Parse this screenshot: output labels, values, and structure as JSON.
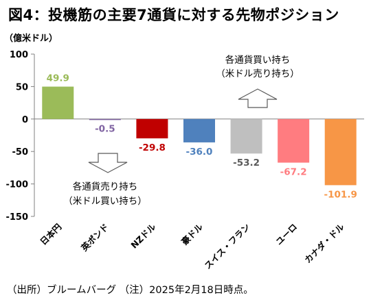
{
  "title": "図4：投機筋の主要7通貨に対する先物ポジション",
  "footnote": "（出所）ブルームバーグ （注）2025年2月18日時点。",
  "chart_data": {
    "type": "bar",
    "title": "図4：投機筋の主要7通貨に対する先物ポジション",
    "ylabel": "（億米ドル）",
    "ylim": [
      -150,
      100
    ],
    "yticks": [
      100,
      50,
      0,
      -50,
      -100,
      -150
    ],
    "grid": false,
    "legend": "none",
    "categories": [
      "日本円",
      "英ポンド",
      "NZドル",
      "豪ドル",
      "スイス・フラン",
      "ユーロ",
      "カナダ・ドル"
    ],
    "values": [
      49.9,
      -0.5,
      -29.8,
      -36.0,
      -53.2,
      -67.2,
      -101.9
    ],
    "value_labels": [
      "49.9",
      "-0.5",
      "-29.8",
      "-36.0",
      "-53.2",
      "-67.2",
      "-101.9"
    ],
    "colors": [
      "#9bbb59",
      "#8064a2",
      "#c00000",
      "#4f81bd",
      "#bfbfbf",
      "#ff7c80",
      "#f79646"
    ],
    "label_colors": [
      "#9bbb59",
      "#8064a2",
      "#c00000",
      "#4f81bd",
      "#595959",
      "#ff7c80",
      "#f79646"
    ],
    "annotations": {
      "up_line1": "各通貨買い持ち",
      "up_line2": "（米ドル売り持ち）",
      "down_line1": "各通貨売り持ち",
      "down_line2": "（米ドル買い持ち）",
      "up_icon": "hollow-up-arrow-icon",
      "down_icon": "hollow-down-arrow-icon"
    }
  }
}
